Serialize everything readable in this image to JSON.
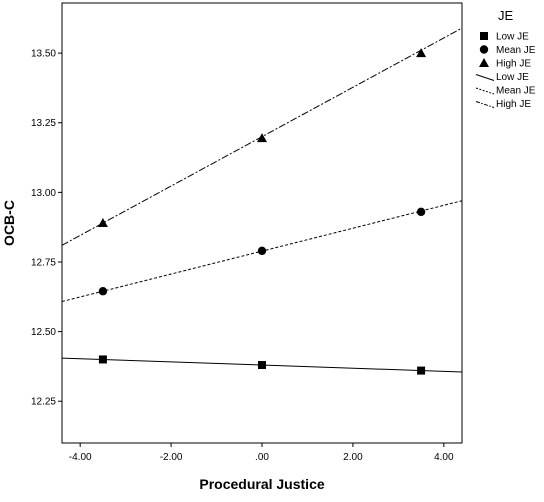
{
  "chart_data": {
    "type": "line",
    "xlabel": "Procedural Justice",
    "ylabel": "OCB-C",
    "xlim": [
      -4.4,
      4.4
    ],
    "ylim": [
      12.1,
      13.68
    ],
    "xticks": [
      "-4.00",
      "-2.00",
      ".00",
      "2.00",
      "4.00"
    ],
    "yticks": [
      "12.25",
      "12.50",
      "12.75",
      "13.00",
      "13.25",
      "13.50"
    ],
    "grid": false,
    "legend_title": "JE",
    "legend_position": "right",
    "points": [
      {
        "name": "Low JE",
        "marker": "square",
        "x": [
          -3.5,
          0,
          3.5
        ],
        "y": [
          12.4,
          12.38,
          12.36
        ]
      },
      {
        "name": "Mean JE",
        "marker": "circle",
        "x": [
          -3.5,
          0,
          3.5
        ],
        "y": [
          12.645,
          12.79,
          12.93
        ]
      },
      {
        "name": "High JE",
        "marker": "triangle",
        "x": [
          -3.5,
          0,
          3.5
        ],
        "y": [
          12.89,
          13.195,
          13.5
        ]
      }
    ],
    "lines": [
      {
        "name": "Low JE",
        "dash": "solid",
        "x": [
          -4.4,
          4.4
        ],
        "y": [
          12.405,
          12.355
        ]
      },
      {
        "name": "Mean JE",
        "dash": "dashed",
        "x": [
          -4.4,
          4.4
        ],
        "y": [
          12.608,
          12.97
        ]
      },
      {
        "name": "High JE",
        "dash": "dash-dot",
        "x": [
          -4.4,
          4.4
        ],
        "y": [
          12.81,
          13.59
        ]
      }
    ]
  }
}
